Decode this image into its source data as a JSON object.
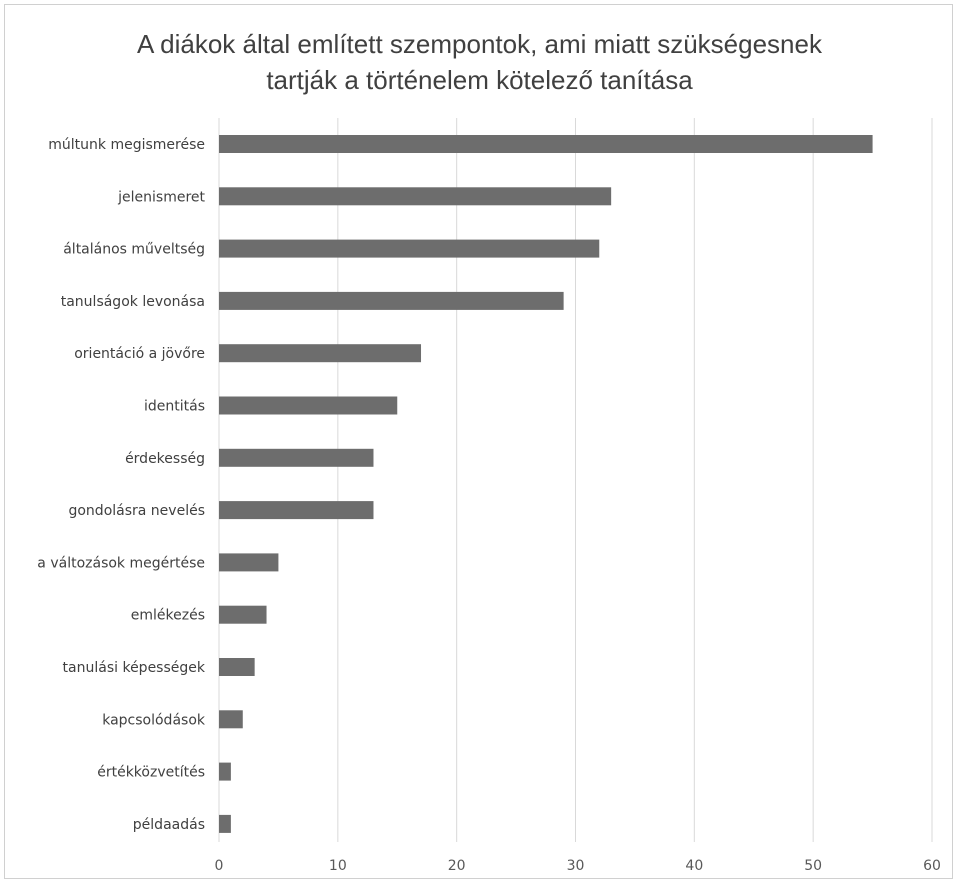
{
  "chart_data": {
    "type": "bar",
    "orientation": "horizontal",
    "title_lines": [
      "A diákok által említett szempontok, ami miatt szükségesnek",
      "tartják a történelem kötelező tanítása"
    ],
    "categories": [
      "múltunk megismerése",
      "jelenismeret",
      "általános műveltség",
      "tanulságok levonása",
      "orientáció a jövőre",
      "identitás",
      "érdekesség",
      "gondolásra nevelés",
      "a változások megértése",
      "emlékezés",
      "tanulási képességek",
      "kapcsolódások",
      "értékközvetítés",
      "példaadás"
    ],
    "values": [
      55,
      33,
      32,
      29,
      17,
      15,
      13,
      13,
      5,
      4,
      3,
      2,
      1,
      1
    ],
    "xlim": [
      0,
      60
    ],
    "x_ticks": [
      "0",
      "10",
      "20",
      "30",
      "40",
      "50",
      "60"
    ],
    "grid": "vertical",
    "bar_color": "#6d6d6d",
    "grid_color": "#d9d9d9",
    "xlabel": "",
    "ylabel": ""
  }
}
